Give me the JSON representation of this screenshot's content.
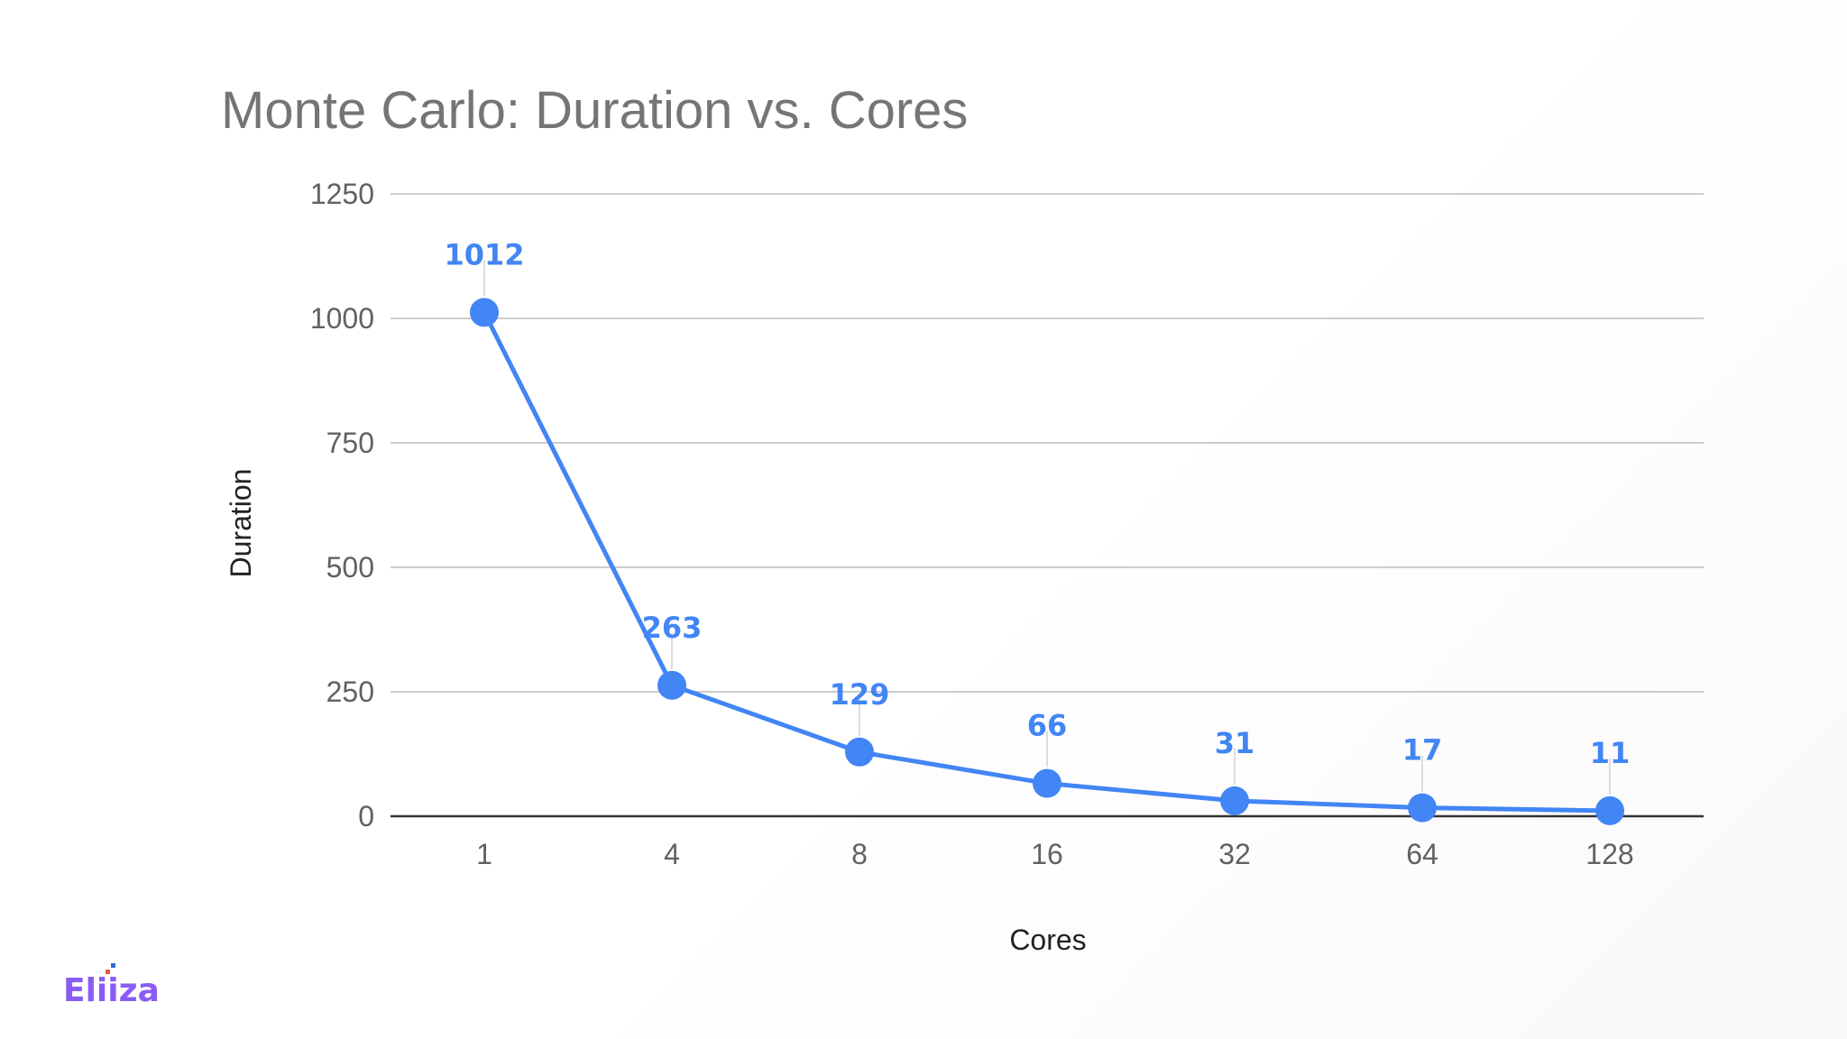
{
  "chart_data": {
    "type": "line",
    "title": "Monte Carlo: Duration vs. Cores",
    "xlabel": "Cores",
    "ylabel": "Duration",
    "categories": [
      "1",
      "4",
      "8",
      "16",
      "32",
      "64",
      "128"
    ],
    "series": [
      {
        "name": "Duration",
        "values": [
          1012,
          263,
          129,
          66,
          31,
          17,
          11
        ],
        "color": "#4285f4"
      }
    ],
    "ylim": [
      0,
      1250
    ],
    "yticks": [
      0,
      250,
      500,
      750,
      1000,
      1250
    ],
    "grid": true,
    "legend": "none"
  },
  "brand": {
    "name": "Eliiza",
    "colors": {
      "text": "#8a5cf6",
      "dot_blue": "#2f6bd8",
      "dot_red": "#e5533d"
    }
  },
  "colors": {
    "series": "#4285f4",
    "title": "#757575",
    "gridline": "#cccccc",
    "baseline": "#333333"
  }
}
